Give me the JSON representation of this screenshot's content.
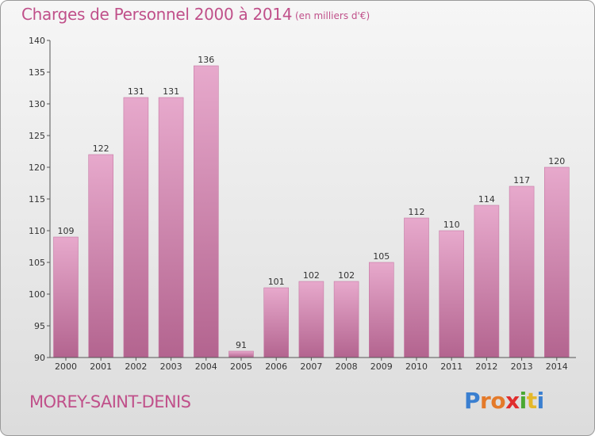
{
  "chart_data": {
    "type": "bar",
    "title": "Charges de Personnel 2000 à 2014",
    "subtitle": "(en milliers d'€)",
    "categories": [
      "2000",
      "2001",
      "2002",
      "2003",
      "2004",
      "2005",
      "2006",
      "2007",
      "2008",
      "2009",
      "2010",
      "2011",
      "2012",
      "2013",
      "2014"
    ],
    "values": [
      109,
      122,
      131,
      131,
      136,
      91,
      101,
      102,
      102,
      105,
      112,
      110,
      114,
      117,
      120
    ],
    "ylim": [
      90,
      140
    ],
    "yticks": [
      90,
      95,
      100,
      105,
      110,
      115,
      120,
      125,
      130,
      135,
      140
    ],
    "grid": false,
    "legend": "none",
    "bar_color": "#d98bb6"
  },
  "footer": {
    "city": "MOREY-SAINT-DENIS",
    "logo_letters": [
      {
        "ch": "P",
        "color": "#3a7fd0"
      },
      {
        "ch": "r",
        "color": "#e47a2a"
      },
      {
        "ch": "o",
        "color": "#e47a2a"
      },
      {
        "ch": "x",
        "color": "#e02d2d"
      },
      {
        "ch": "i",
        "color": "#4aa832"
      },
      {
        "ch": "t",
        "color": "#e4b82a"
      },
      {
        "ch": "i",
        "color": "#3a7fd0"
      }
    ]
  }
}
